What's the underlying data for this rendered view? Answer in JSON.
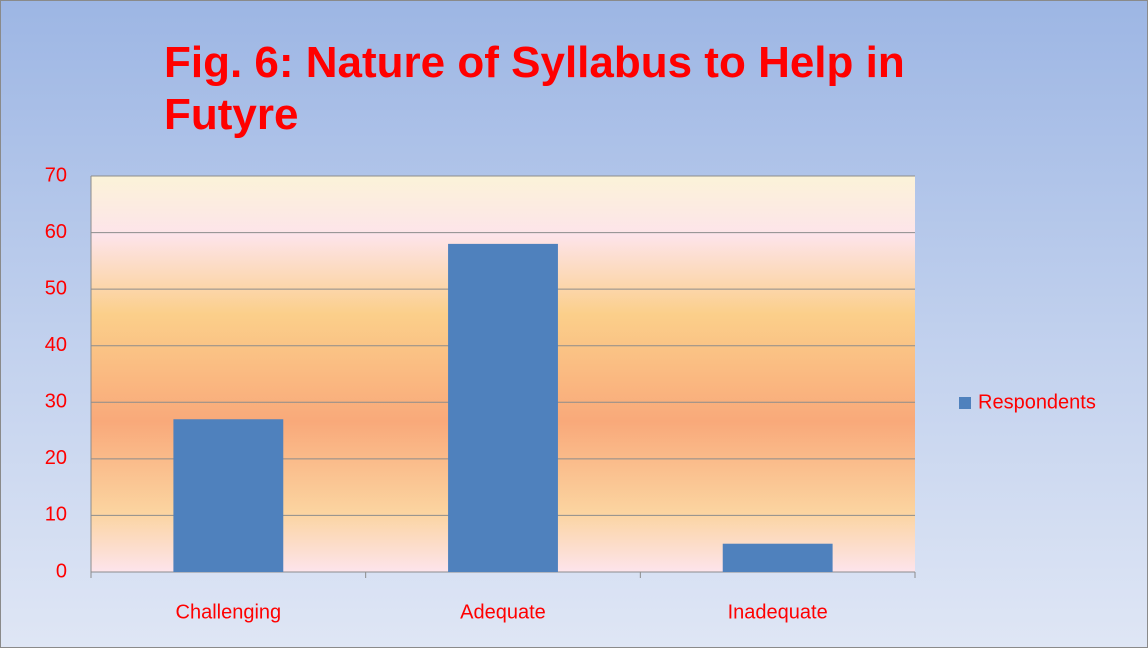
{
  "chart_data": {
    "type": "bar",
    "title": "Fig. 6: Nature of Syllabus to Help in Futyre",
    "categories": [
      "Challenging",
      "Adequate",
      "Inadequate"
    ],
    "series": [
      {
        "name": "Respondents",
        "color": "#4f81bd",
        "values": [
          27,
          58,
          5
        ]
      }
    ],
    "ylim": [
      0,
      70
    ],
    "yticks": [
      0,
      10,
      20,
      30,
      40,
      50,
      60,
      70
    ],
    "grid": true,
    "legend": "right"
  }
}
